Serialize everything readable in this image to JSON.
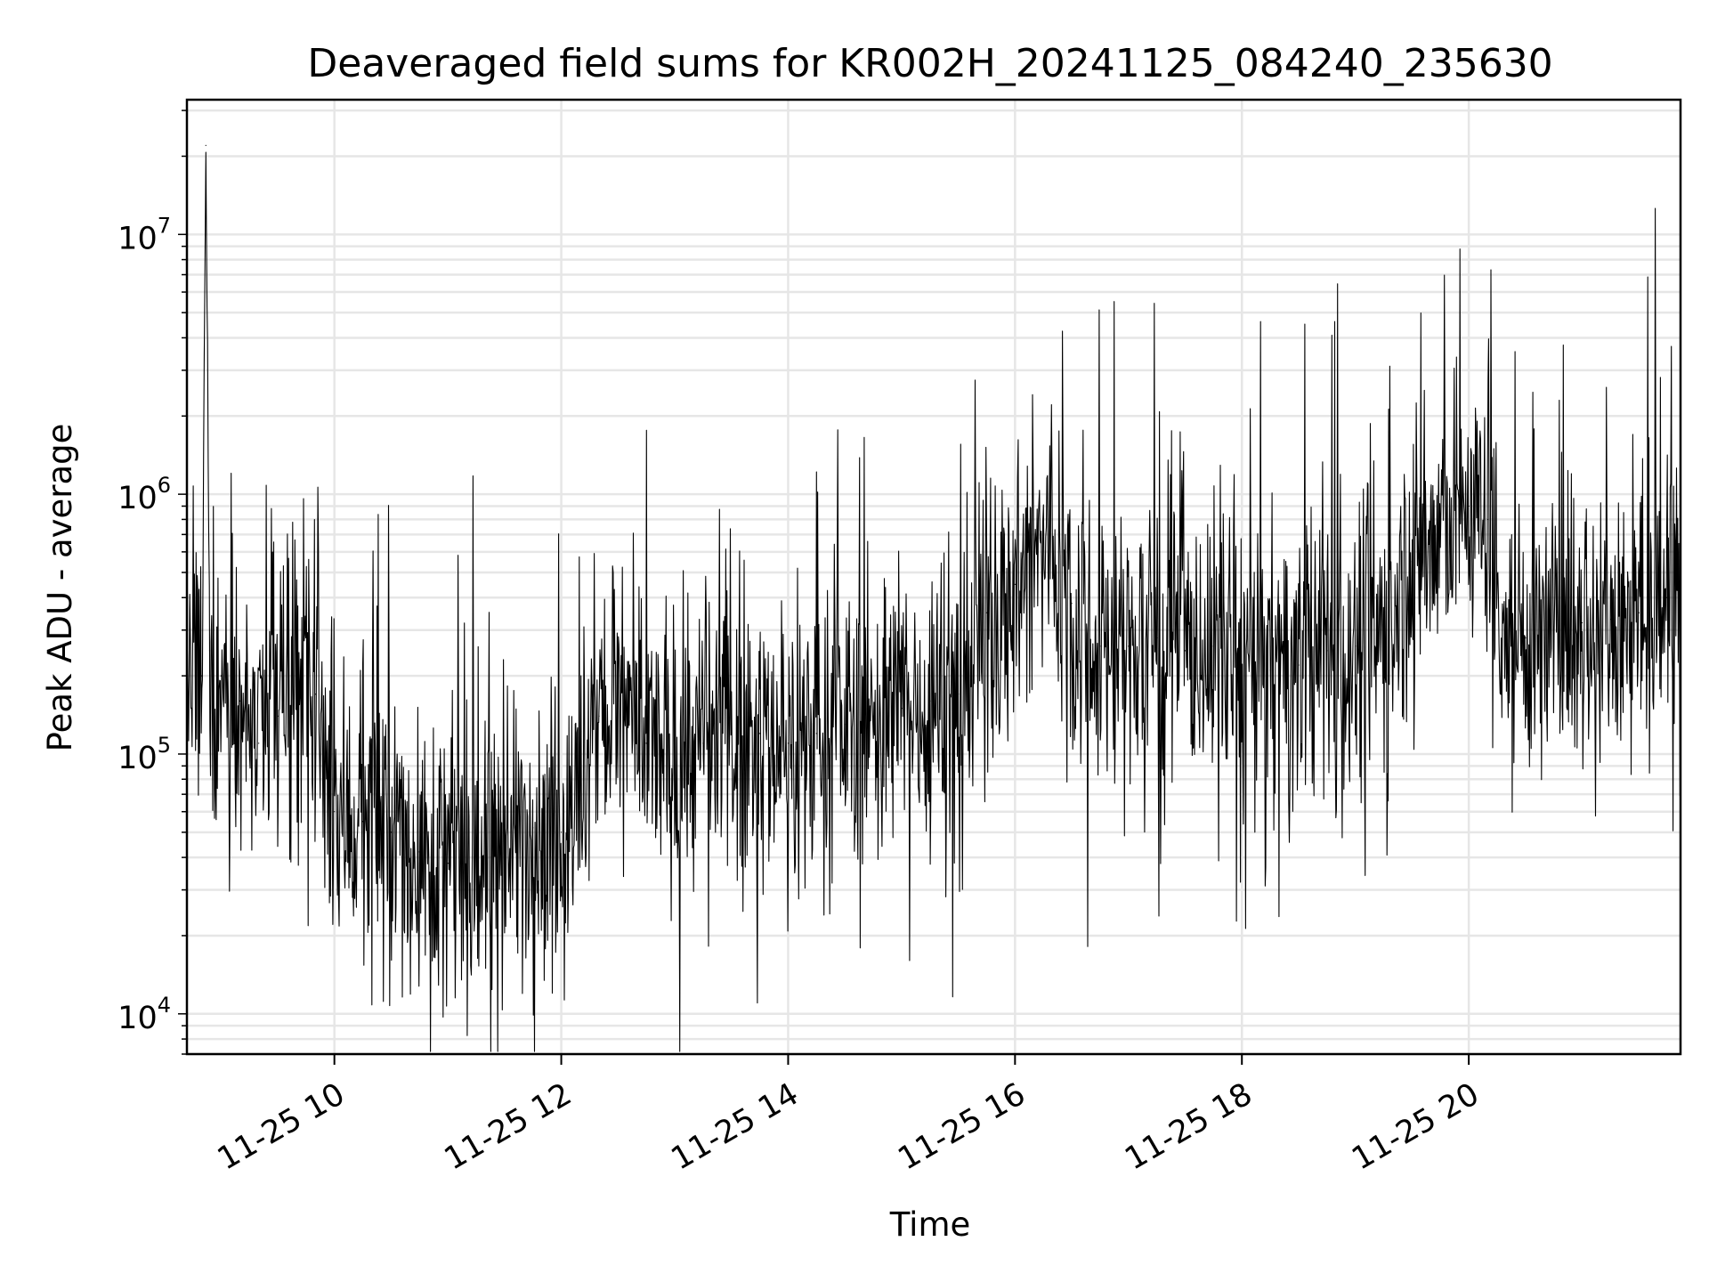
{
  "chart_data": {
    "type": "line",
    "title": "Deaveraged field sums for KR002H_20241125_084240_235630",
    "xlabel": "Time",
    "ylabel": "Peak ADU - average",
    "yscale": "log",
    "xlim": [
      "2024-11-25 08:42",
      "2024-11-25 21:52"
    ],
    "ylim": [
      7000,
      33000000
    ],
    "grid": true,
    "x_ticks": [
      {
        "t": "2024-11-25 10:00",
        "label": "11-25 10"
      },
      {
        "t": "2024-11-25 12:00",
        "label": "11-25 12"
      },
      {
        "t": "2024-11-25 14:00",
        "label": "11-25 14"
      },
      {
        "t": "2024-11-25 16:00",
        "label": "11-25 16"
      },
      {
        "t": "2024-11-25 18:00",
        "label": "11-25 18"
      },
      {
        "t": "2024-11-25 20:00",
        "label": "11-25 20"
      }
    ],
    "y_ticks": [
      {
        "value": 10000,
        "base": "10",
        "exp": "4"
      },
      {
        "value": 100000,
        "base": "10",
        "exp": "5"
      },
      {
        "value": 1000000,
        "base": "10",
        "exp": "6"
      },
      {
        "value": 10000000,
        "base": "10",
        "exp": "7"
      }
    ],
    "line_color": "#000000",
    "series": [
      {
        "x": [
          "2024-11-25 08:42",
          "2024-11-25 08:50",
          "2024-11-25 08:52",
          "2024-11-25 08:54",
          "2024-11-25 09:00",
          "2024-11-25 09:10",
          "2024-11-25 09:20",
          "2024-11-25 09:30",
          "2024-11-25 09:40",
          "2024-11-25 09:50",
          "2024-11-25 10:00",
          "2024-11-25 10:15",
          "2024-11-25 10:30",
          "2024-11-25 10:45",
          "2024-11-25 11:00",
          "2024-11-25 11:15",
          "2024-11-25 11:30",
          "2024-11-25 11:45",
          "2024-11-25 12:00",
          "2024-11-25 12:10",
          "2024-11-25 12:20",
          "2024-11-25 12:30",
          "2024-11-25 12:45",
          "2024-11-25 13:00",
          "2024-11-25 13:15",
          "2024-11-25 13:30",
          "2024-11-25 13:45",
          "2024-11-25 14:00",
          "2024-11-25 14:15",
          "2024-11-25 14:30",
          "2024-11-25 14:45",
          "2024-11-25 15:00",
          "2024-11-25 15:15",
          "2024-11-25 15:30",
          "2024-11-25 15:45",
          "2024-11-25 16:00",
          "2024-11-25 16:10",
          "2024-11-25 16:20",
          "2024-11-25 16:30",
          "2024-11-25 16:45",
          "2024-11-25 17:00",
          "2024-11-25 17:15",
          "2024-11-25 17:30",
          "2024-11-25 17:45",
          "2024-11-25 18:00",
          "2024-11-25 18:15",
          "2024-11-25 18:30",
          "2024-11-25 18:45",
          "2024-11-25 19:00",
          "2024-11-25 19:15",
          "2024-11-25 19:30",
          "2024-11-25 19:45",
          "2024-11-25 20:00",
          "2024-11-25 20:10",
          "2024-11-25 20:20",
          "2024-11-25 20:30",
          "2024-11-25 20:45",
          "2024-11-25 21:00",
          "2024-11-25 21:15",
          "2024-11-25 21:30",
          "2024-11-25 21:45",
          "2024-11-25 21:52"
        ],
        "y": [
          150000,
          200000,
          22000000,
          250000,
          200000,
          160000,
          110000,
          140000,
          180000,
          170000,
          60000,
          55000,
          50000,
          42000,
          38000,
          35000,
          45000,
          52000,
          50000,
          60000,
          140000,
          160000,
          110000,
          90000,
          110000,
          130000,
          120000,
          110000,
          120000,
          130000,
          140000,
          150000,
          160000,
          170000,
          350000,
          450000,
          550000,
          650000,
          380000,
          260000,
          260000,
          280000,
          250000,
          260000,
          220000,
          210000,
          220000,
          250000,
          260000,
          300000,
          550000,
          700000,
          900000,
          800000,
          300000,
          280000,
          300000,
          320000,
          330000,
          350000,
          400000,
          450000
        ]
      }
    ]
  }
}
